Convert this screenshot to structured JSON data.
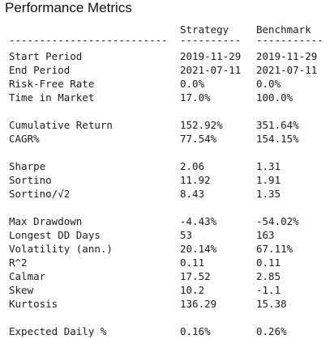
{
  "title": "Performance Metrics",
  "headers": {
    "col1": "Strategy",
    "col2": "Benchmark"
  },
  "separators": {
    "metric": "--------------------------",
    "col1": "----------",
    "col2": "-----------"
  },
  "groups": [
    {
      "rows": [
        {
          "label": "Start Period",
          "strategy": "2019-11-29",
          "benchmark": "2019-11-29"
        },
        {
          "label": "End Period",
          "strategy": "2021-07-11",
          "benchmark": "2021-07-11"
        },
        {
          "label": "Risk-Free Rate",
          "strategy": "0.0%",
          "benchmark": "0.0%"
        },
        {
          "label": "Time in Market",
          "strategy": "17.0%",
          "benchmark": "100.0%"
        }
      ]
    },
    {
      "rows": [
        {
          "label": "Cumulative Return",
          "strategy": "152.92%",
          "benchmark": "351.64%"
        },
        {
          "label": "CAGR%",
          "strategy": "77.54%",
          "benchmark": "154.15%"
        }
      ]
    },
    {
      "rows": [
        {
          "label": "Sharpe",
          "strategy": "2.06",
          "benchmark": "1.31"
        },
        {
          "label": "Sortino",
          "strategy": "11.92",
          "benchmark": "1.91"
        },
        {
          "label": "Sortino/√2",
          "strategy": "8.43",
          "benchmark": "1.35"
        }
      ]
    },
    {
      "rows": [
        {
          "label": "Max Drawdown",
          "strategy": "-4.43%",
          "benchmark": "-54.02%"
        },
        {
          "label": "Longest DD Days",
          "strategy": "53",
          "benchmark": "163"
        },
        {
          "label": "Volatility (ann.)",
          "strategy": "20.14%",
          "benchmark": "67.11%"
        },
        {
          "label": "R^2",
          "strategy": "0.11",
          "benchmark": "0.11"
        },
        {
          "label": "Calmar",
          "strategy": "17.52",
          "benchmark": "2.85"
        },
        {
          "label": "Skew",
          "strategy": "10.2",
          "benchmark": "-1.1"
        },
        {
          "label": "Kurtosis",
          "strategy": "136.29",
          "benchmark": "15.38"
        }
      ]
    },
    {
      "rows": [
        {
          "label": "Expected Daily %",
          "strategy": "0.16%",
          "benchmark": "0.26%"
        }
      ]
    }
  ]
}
